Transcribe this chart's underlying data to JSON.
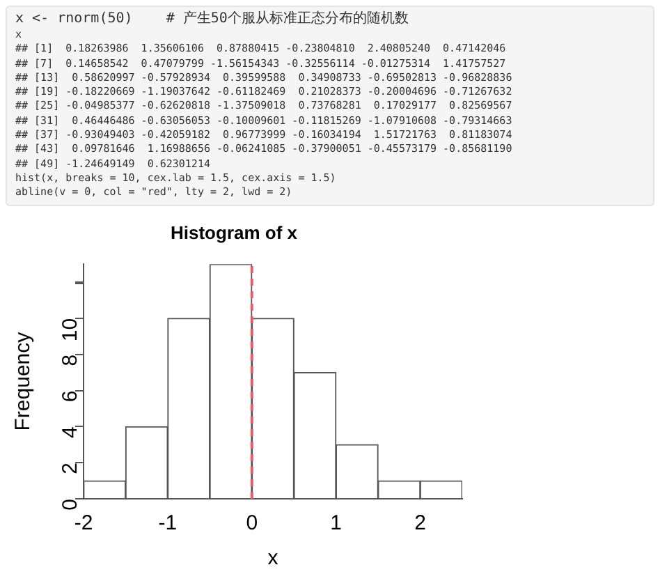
{
  "chart_data": {
    "type": "histogram",
    "title": "Histogram of x",
    "xlabel": "x",
    "ylabel": "Frequency",
    "bins": [
      -2,
      -1.5,
      -1,
      -0.5,
      0,
      0.5,
      1,
      1.5,
      2,
      2.5
    ],
    "values": [
      1,
      4,
      10,
      13,
      10,
      7,
      3,
      1,
      1
    ],
    "color": "#ffffff",
    "xlim": [
      -2,
      2.5
    ],
    "xticks": [
      -2,
      -1,
      0,
      1,
      2
    ],
    "ylim": [
      0,
      13
    ],
    "yticks": [
      0,
      2,
      4,
      6,
      8,
      10,
      {
        "value": 12,
        "label": null
      }
    ],
    "grid": false,
    "ref_lines": [
      {
        "axis": "x",
        "value": 0,
        "color": "#e0606a",
        "line_style": "dashed"
      }
    ],
    "annotations": [
      "x <- rnorm(50)    # 产生50个服从标准正态分布的随机数",
      "x",
      "## [1]  0.18263986  1.35606106  0.87880415 -0.23804810  2.40805240  0.47142046",
      "## [7]  0.14658542  0.47079799 -1.56154343 -0.32556114 -0.01275314  1.41757527",
      "## [13]  0.58620997 -0.57928934  0.39599588  0.34908733 -0.69502813 -0.96828836",
      "## [19] -0.18220669 -1.19037642 -0.61182469  0.21028373 -0.20004696 -0.71267632",
      "## [25] -0.04985377 -0.62620818 -1.37509018  0.73768281  0.17029177  0.82569567",
      "## [31]  0.46446486 -0.63056053 -0.10009601 -0.11815269 -1.07910608 -0.79314663",
      "## [37] -0.93049403 -0.42059182  0.96773999 -0.16034194  1.51721763  0.81183074",
      "## [43]  0.09781646  1.16988656 -0.06241085 -0.37900051 -0.45573179 -0.85681190",
      "## [49] -1.24649149  0.62301214",
      "hist(x, breaks = 10, cex.lab = 1.5, cex.axis = 1.5)",
      "abline(v = 0, col = \"red\", lty = 2, lwd = 2)"
    ]
  }
}
